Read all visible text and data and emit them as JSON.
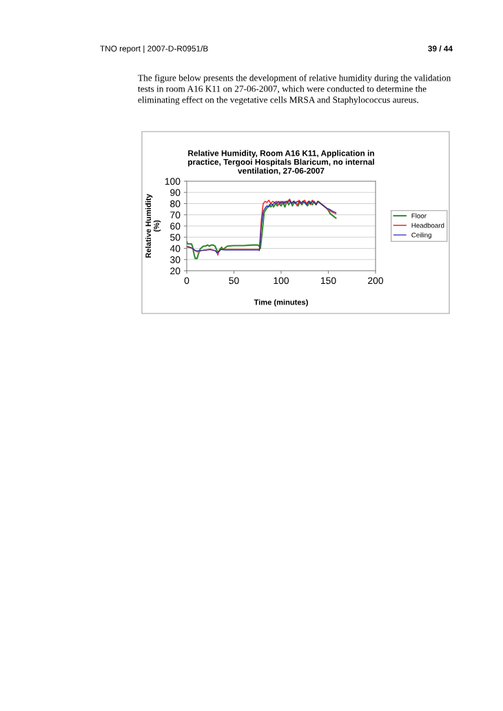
{
  "chart_data": {
    "type": "line",
    "title": "Relative Humidity, Room A16 K11, Application in\npractice, Tergooi Hospitals Blaricum, no internal\nventilation, 27-06-2007",
    "xlabel": "Time (minutes)",
    "ylabel": "Relative Humidity\n(%)",
    "annotations": [
      "TNO report | 2007-D-R0951/B",
      "39 / 44",
      "The figure below presents the development of relative humidity during the validation\ntests in room A16 K11 on 27-06-2007, which were conducted to determine the\neliminating effect on the vegetative cells MRSA and Staphylococcus aureus."
    ],
    "xlim": [
      0,
      200
    ],
    "xticks": [
      0,
      50,
      100,
      150,
      200
    ],
    "ylim": [
      20,
      100
    ],
    "yticks": [
      20,
      30,
      40,
      50,
      60,
      70,
      80,
      90,
      100
    ],
    "grid": "y",
    "legend": "right",
    "marker": "none",
    "line_style": "solid",
    "series": [
      {
        "name": "Floor",
        "color": "#2e8b2e",
        "x": [
          0,
          1,
          2,
          5,
          6,
          8,
          9,
          11,
          12,
          14,
          16,
          18,
          20,
          22,
          24,
          26,
          28,
          30,
          32,
          33,
          35,
          37,
          38,
          40,
          43,
          50,
          60,
          70,
          75,
          77,
          78,
          80,
          82,
          84,
          86,
          88,
          89,
          91,
          92,
          94,
          96,
          98,
          100,
          102,
          104,
          106,
          108,
          110,
          112,
          114,
          116,
          118,
          120,
          122,
          124,
          126,
          128,
          130,
          133,
          135,
          137,
          139,
          142,
          145,
          148,
          150,
          152,
          155,
          158
        ],
        "values": [
          46,
          44,
          44,
          44,
          42,
          34,
          31,
          31,
          34,
          39,
          41,
          42,
          42,
          43,
          42,
          43,
          43,
          42,
          38,
          36,
          39,
          41,
          39,
          40,
          42,
          42.5,
          42.5,
          43,
          43,
          42,
          40,
          55,
          72,
          75,
          77,
          79,
          77,
          79,
          77,
          80,
          78,
          80,
          78,
          81,
          77,
          82,
          79,
          82,
          78,
          82,
          80,
          78,
          82,
          79,
          82,
          80,
          78,
          82,
          79,
          82,
          79,
          82,
          80,
          78,
          76,
          74,
          71,
          69,
          67
        ]
      },
      {
        "name": "Headboard",
        "color": "#e8383d",
        "x": [
          0,
          3,
          6,
          9,
          11,
          13,
          15,
          20,
          25,
          30,
          32,
          33,
          34,
          36,
          40,
          50,
          60,
          70,
          76,
          77,
          79,
          81,
          83,
          85,
          87,
          89,
          91,
          93,
          95,
          97,
          99,
          101,
          103,
          105,
          107,
          109,
          111,
          113,
          115,
          117,
          119,
          121,
          123,
          125,
          127,
          129,
          131,
          133,
          135,
          137,
          139,
          142,
          145,
          148,
          151,
          155,
          158
        ],
        "values": [
          42,
          41,
          40,
          38,
          37,
          37,
          38,
          38.5,
          39,
          38,
          37,
          34,
          37,
          39,
          39,
          39,
          39,
          39,
          39,
          39,
          65,
          80,
          82,
          81,
          83,
          80,
          82,
          81,
          82,
          79,
          82,
          80,
          82,
          80,
          82,
          84,
          80,
          82,
          81,
          78,
          83,
          80,
          82,
          83,
          80,
          82,
          79,
          83,
          81,
          80,
          82,
          80,
          78,
          76,
          74,
          72,
          71
        ]
      },
      {
        "name": "Ceiling",
        "color": "#2a2aa8",
        "x": [
          0,
          3,
          6,
          9,
          12,
          15,
          20,
          25,
          30,
          32,
          34,
          36,
          40,
          50,
          60,
          70,
          76,
          77,
          79,
          81,
          83,
          85,
          87,
          89,
          91,
          93,
          95,
          97,
          99,
          101,
          103,
          105,
          107,
          109,
          111,
          113,
          115,
          117,
          119,
          121,
          123,
          125,
          127,
          129,
          131,
          133,
          135,
          137,
          139,
          142,
          145,
          148,
          151,
          155,
          158
        ],
        "values": [
          41,
          41,
          40,
          38,
          38,
          38,
          38.5,
          39,
          38,
          36,
          37,
          39,
          38.5,
          38.5,
          38.5,
          38.5,
          38.5,
          38,
          60,
          73,
          76,
          78,
          77,
          80,
          79,
          81,
          80,
          82,
          80,
          82,
          80,
          82,
          81,
          83,
          80,
          82,
          80,
          82,
          82,
          80,
          82,
          81,
          79,
          82,
          80,
          82,
          81,
          79,
          82,
          80,
          78,
          76,
          75,
          73,
          72
        ]
      }
    ]
  }
}
